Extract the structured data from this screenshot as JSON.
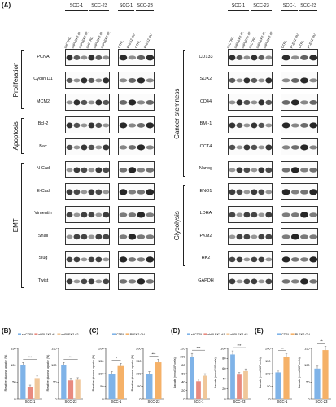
{
  "panels": {
    "A": "(A)",
    "B": "(B)",
    "C": "(C)",
    "D": "(D)",
    "E": "(E)"
  },
  "cell_lines": {
    "scc1": "SCC-1",
    "scc23": "SCC-23"
  },
  "conditions_knockdown": [
    "shCTRL",
    "shPLEK2 #1",
    "shPLEK2 #2",
    "shCTRL",
    "shPLEK2 #1",
    "shPLEK2 #2"
  ],
  "conditions_overexpr": [
    "CTRL",
    "PLEK2 OV",
    "CTRL",
    "PLEK2 OV"
  ],
  "left_categories": [
    {
      "name": "Proliferation",
      "markers": [
        "PCNA",
        "Cyclin D1",
        "MCM2"
      ]
    },
    {
      "name": "Apoptosis",
      "markers": [
        "Bcl-2",
        "Bax"
      ]
    },
    {
      "name": "EMT",
      "markers": [
        "N-Cad",
        "E-Cad",
        "Vimentin",
        "Snail",
        "Slug",
        "Twist"
      ]
    }
  ],
  "right_categories": [
    {
      "name": "Cancer stemness",
      "markers": [
        "CD133",
        "SOX2",
        "CD44",
        "BMI-1",
        "OCT4",
        "Nanog"
      ]
    },
    {
      "name": "Glycolysis",
      "markers": [
        "ENO1",
        "LDHA",
        "PKM2",
        "HK2"
      ]
    },
    {
      "name": "",
      "markers": [
        "GAPDH"
      ]
    }
  ],
  "colors": {
    "ctrl": "#7fb3e8",
    "kd1": "#e88a7f",
    "kd2": "#f0c79a",
    "ov": "#f5b168",
    "line": "#222222"
  },
  "charts": {
    "B": {
      "legend": [
        "shCTRL",
        "shPLEK2 #1",
        "shPLEK2 #2"
      ],
      "ylabel": "Relative glucose uptake (%)",
      "sig": [
        "***",
        "***"
      ],
      "ticks": [
        "0",
        "50",
        "100",
        "150"
      ]
    },
    "C": {
      "legend": [
        "CTRL",
        "PLEK2 OV"
      ],
      "ylabel": "Relative glucose uptake (%)",
      "sig": [
        "*",
        "***"
      ],
      "ticks": [
        "0",
        "50",
        "100",
        "150",
        "200"
      ]
    },
    "D": {
      "legend": [
        "shCTRL",
        "shPLEK2 #1",
        "shPLEK2 #2"
      ],
      "ylabel_left": "Lactate (nmol/10⁶ cells)",
      "ylabel_right": "Lactate (nmol/10⁶ cells)",
      "sig": [
        "***",
        "***"
      ],
      "ticks_left": [
        "0",
        "20",
        "40",
        "60",
        "80",
        "100",
        "120"
      ],
      "ticks_right": [
        "0",
        "20",
        "40",
        "60",
        "80",
        "100"
      ]
    },
    "E": {
      "legend": [
        "CTRL",
        "PLEK2 OV"
      ],
      "ylabel": "Lactate (nmol/10⁶ cells)",
      "sig": [
        "**",
        "**"
      ],
      "ticks_left": [
        "0",
        "50",
        "100",
        "150",
        "200"
      ],
      "ticks_right": [
        "0",
        "50",
        "100",
        "150"
      ]
    }
  },
  "chart_data": [
    {
      "type": "bar",
      "panel": "B",
      "categories": [
        "SCC-1",
        "SCC-23"
      ],
      "series": [
        {
          "name": "shCTRL",
          "values": [
            100,
            100
          ]
        },
        {
          "name": "shPLEK2 #1",
          "values": [
            35,
            55
          ]
        },
        {
          "name": "shPLEK2 #2",
          "values": [
            62,
            57
          ]
        }
      ],
      "ylim": [
        0,
        150
      ]
    },
    {
      "type": "bar",
      "panel": "C",
      "categories": [
        "SCC-1",
        "SCC-23"
      ],
      "series": [
        {
          "name": "CTRL",
          "values": [
            100,
            100
          ]
        },
        {
          "name": "PLEK2 OV",
          "values": [
            130,
            145
          ]
        }
      ],
      "ylim": [
        0,
        200
      ]
    },
    {
      "type": "bar",
      "panel": "D",
      "categories": [
        "SCC-1",
        "SCC-23"
      ],
      "series": [
        {
          "name": "shCTRL",
          "values": [
            100,
            88
          ]
        },
        {
          "name": "shPLEK2 #1",
          "values": [
            42,
            48
          ]
        },
        {
          "name": "shPLEK2 #2",
          "values": [
            55,
            55
          ]
        }
      ],
      "ylim": [
        0,
        120
      ]
    },
    {
      "type": "bar",
      "panel": "E",
      "categories": [
        "SCC-1",
        "SCC-23"
      ],
      "series": [
        {
          "name": "CTRL",
          "values": [
            105,
            90
          ]
        },
        {
          "name": "PLEK2 OV",
          "values": [
            165,
            145
          ]
        }
      ],
      "ylim": [
        0,
        200
      ]
    }
  ]
}
